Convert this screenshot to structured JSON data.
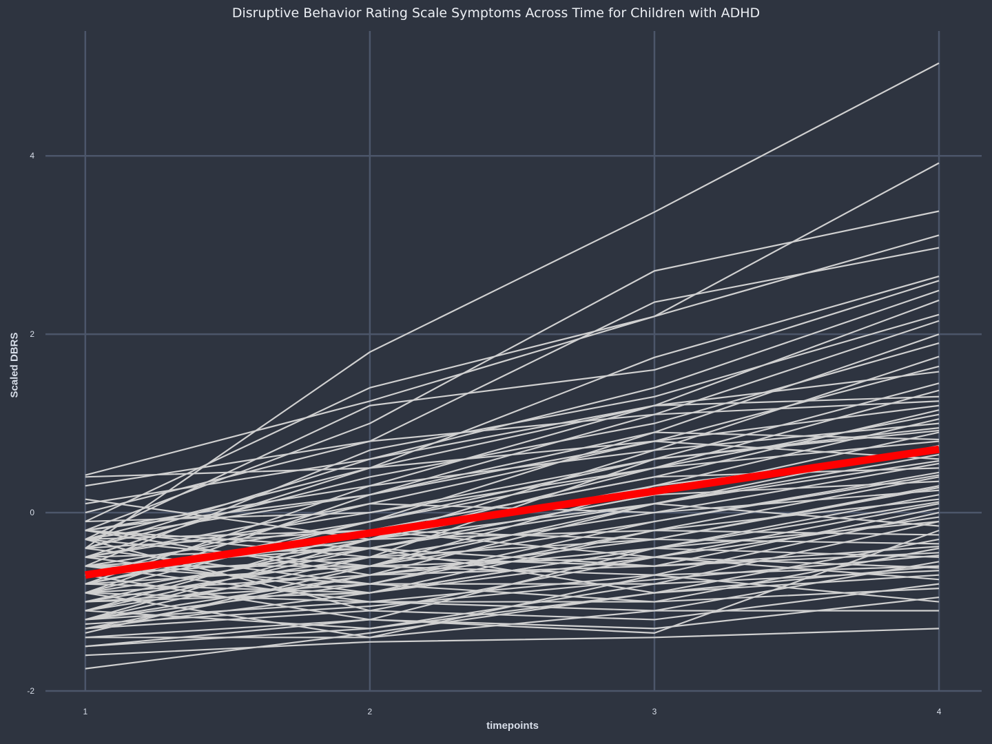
{
  "chart_data": {
    "type": "line",
    "title": "Disruptive Behavior Rating Scale Symptoms Across Time for Children with ADHD",
    "xlabel": "timepoints",
    "ylabel": "Scaled DBRS",
    "x": [
      1,
      2,
      3,
      4
    ],
    "xticks": [
      "1",
      "2",
      "3",
      "4"
    ],
    "yticks": [
      -2,
      0,
      2,
      4
    ],
    "ylim": [
      -2,
      5.4
    ],
    "xlim": [
      0.86,
      4.15
    ],
    "grid": true,
    "individual_color": "#d0d0d0",
    "mean_color": "#ff0000",
    "mean_series": [
      -0.7,
      -0.23,
      0.24,
      0.71
    ],
    "series": [
      {
        "values": [
          -0.4,
          1.8,
          3.37,
          5.04
        ]
      },
      {
        "values": [
          0.42,
          1.25,
          2.2,
          3.92
        ]
      },
      {
        "values": [
          -0.2,
          1.0,
          2.71,
          3.38
        ]
      },
      {
        "values": [
          -0.1,
          1.4,
          2.2,
          3.11
        ]
      },
      {
        "values": [
          0.3,
          0.8,
          2.36,
          2.97
        ]
      },
      {
        "values": [
          -0.5,
          0.5,
          1.74,
          2.65
        ]
      },
      {
        "values": [
          -0.3,
          1.2,
          1.6,
          2.6
        ]
      },
      {
        "values": [
          0.1,
          0.6,
          1.4,
          2.49
        ]
      },
      {
        "values": [
          -0.8,
          0.3,
          1.2,
          2.38
        ]
      },
      {
        "values": [
          -0.6,
          0.7,
          1.3,
          2.22
        ]
      },
      {
        "values": [
          -0.2,
          0.2,
          1.1,
          2.15
        ]
      },
      {
        "values": [
          -0.9,
          -0.1,
          0.9,
          2.0
        ]
      },
      {
        "values": [
          -0.4,
          0.4,
          1.0,
          1.9
        ]
      },
      {
        "values": [
          -1.0,
          -0.3,
          0.7,
          1.75
        ]
      },
      {
        "values": [
          -0.7,
          0.1,
          0.8,
          1.64
        ]
      },
      {
        "values": [
          -0.3,
          0.5,
          1.2,
          1.58
        ]
      },
      {
        "values": [
          -1.2,
          -0.5,
          0.6,
          1.45
        ]
      },
      {
        "values": [
          -0.5,
          0.0,
          0.5,
          1.37
        ]
      },
      {
        "values": [
          0.0,
          0.8,
          1.1,
          1.25
        ]
      },
      {
        "values": [
          -0.8,
          -0.2,
          0.4,
          1.15
        ]
      },
      {
        "values": [
          -1.1,
          -0.6,
          0.3,
          1.05
        ]
      },
      {
        "values": [
          -0.2,
          0.3,
          0.7,
          1.0
        ]
      },
      {
        "values": [
          -0.6,
          -0.1,
          0.6,
          0.95
        ]
      },
      {
        "values": [
          -0.9,
          -0.4,
          0.2,
          0.9
        ]
      },
      {
        "values": [
          -0.3,
          0.2,
          0.9,
          0.82
        ]
      },
      {
        "values": [
          -1.3,
          -0.7,
          0.1,
          0.75
        ]
      },
      {
        "values": [
          -0.7,
          -0.3,
          0.3,
          0.68
        ]
      },
      {
        "values": [
          0.4,
          0.5,
          0.8,
          0.6
        ]
      },
      {
        "values": [
          -1.0,
          -0.5,
          0.0,
          0.55
        ]
      },
      {
        "values": [
          -0.4,
          -0.2,
          0.4,
          0.5
        ]
      },
      {
        "values": [
          -0.6,
          -0.6,
          -0.1,
          0.45
        ]
      },
      {
        "values": [
          -1.2,
          -0.8,
          -0.2,
          0.4
        ]
      },
      {
        "values": [
          -0.2,
          -0.4,
          0.2,
          0.35
        ]
      },
      {
        "values": [
          -0.9,
          -0.7,
          -0.3,
          0.3
        ]
      },
      {
        "values": [
          -0.5,
          0.1,
          0.0,
          0.25
        ]
      },
      {
        "values": [
          -1.4,
          -1.2,
          -0.4,
          0.2
        ]
      },
      {
        "values": [
          -0.8,
          -0.9,
          -0.2,
          0.15
        ]
      },
      {
        "values": [
          -0.3,
          -0.6,
          -0.5,
          0.1
        ]
      },
      {
        "values": [
          -1.1,
          -0.4,
          -0.6,
          0.05
        ]
      },
      {
        "values": [
          -0.6,
          -1.0,
          -0.7,
          0.0
        ]
      },
      {
        "values": [
          -1.3,
          -1.1,
          -0.5,
          -0.05
        ]
      },
      {
        "values": [
          -0.4,
          -0.8,
          -0.8,
          -0.1
        ]
      },
      {
        "values": [
          -1.0,
          -0.3,
          0.1,
          -0.15
        ]
      },
      {
        "values": [
          -0.7,
          -1.2,
          -1.35,
          -0.2
        ]
      },
      {
        "values": [
          -1.5,
          -1.3,
          -0.9,
          -0.3
        ]
      },
      {
        "values": [
          -0.2,
          -0.5,
          -0.3,
          -0.35
        ]
      },
      {
        "values": [
          -0.9,
          -1.0,
          -1.0,
          -0.4
        ]
      },
      {
        "values": [
          -1.2,
          -0.7,
          -0.6,
          -0.45
        ]
      },
      {
        "values": [
          -0.5,
          -0.9,
          -0.4,
          -0.5
        ]
      },
      {
        "values": [
          -1.4,
          -1.4,
          -1.1,
          -0.55
        ]
      },
      {
        "values": [
          -0.8,
          -0.6,
          -0.7,
          -0.6
        ]
      },
      {
        "values": [
          -1.1,
          -1.3,
          -0.8,
          -0.65
        ]
      },
      {
        "values": [
          -0.6,
          -0.4,
          -0.9,
          -0.7
        ]
      },
      {
        "values": [
          -1.3,
          -0.9,
          -0.5,
          -0.75
        ]
      },
      {
        "values": [
          -0.3,
          -1.1,
          -1.2,
          -0.8
        ]
      },
      {
        "values": [
          -1.0,
          -0.8,
          -1.0,
          -0.85
        ]
      },
      {
        "values": [
          -1.5,
          -1.2,
          -1.3,
          -0.95
        ]
      },
      {
        "values": [
          -0.9,
          -1.4,
          -0.7,
          -1.0
        ]
      },
      {
        "values": [
          -1.2,
          -1.0,
          -1.1,
          -1.1
        ]
      },
      {
        "values": [
          -1.6,
          -1.45,
          -1.4,
          -1.3
        ]
      },
      {
        "values": [
          -1.75,
          -1.35,
          -0.9,
          -0.6
        ]
      },
      {
        "values": [
          -0.4,
          0.6,
          1.2,
          1.3
        ]
      },
      {
        "values": [
          -1.2,
          -0.3,
          0.5,
          1.1
        ]
      },
      {
        "values": [
          -0.1,
          0.0,
          0.6,
          0.92
        ]
      },
      {
        "values": [
          -0.8,
          -0.1,
          0.5,
          0.8
        ]
      },
      {
        "values": [
          -0.5,
          -0.4,
          0.1,
          0.58
        ]
      },
      {
        "values": [
          -1.1,
          -0.2,
          -0.3,
          0.28
        ]
      },
      {
        "values": [
          -0.2,
          -0.7,
          -0.4,
          0.12
        ]
      },
      {
        "values": [
          0.15,
          -0.3,
          -0.2,
          -0.25
        ]
      },
      {
        "values": [
          -0.7,
          -0.5,
          -0.6,
          -0.38
        ]
      },
      {
        "values": [
          -1.35,
          -0.6,
          0.1,
          0.65
        ]
      },
      {
        "values": [
          -0.9,
          0.2,
          0.8,
          1.2
        ]
      },
      {
        "values": [
          -0.6,
          -0.8,
          -0.1,
          0.42
        ]
      },
      {
        "values": [
          -1.0,
          -0.9,
          -0.4,
          -0.1
        ]
      },
      {
        "values": [
          -0.3,
          -0.2,
          -0.5,
          -0.62
        ]
      },
      {
        "values": [
          -1.25,
          -1.05,
          -0.75,
          -0.48
        ]
      }
    ]
  }
}
